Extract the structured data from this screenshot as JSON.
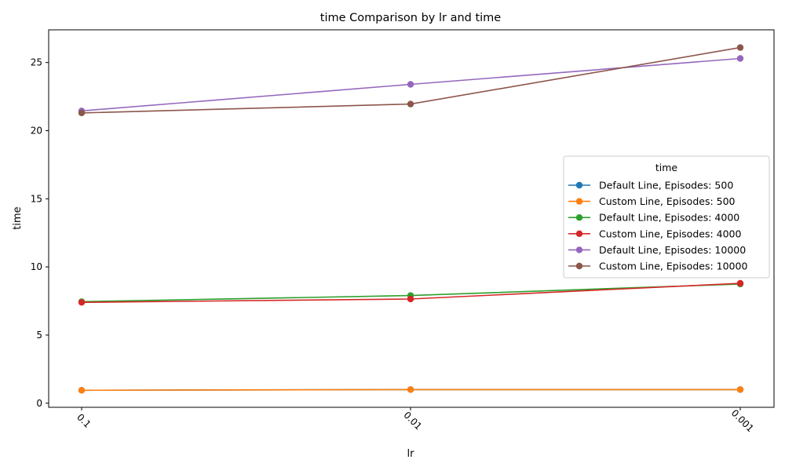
{
  "chart_data": {
    "type": "line",
    "title": "time Comparison by lr and time",
    "xlabel": "lr",
    "ylabel": "time",
    "categories": [
      "0.1",
      "0.01",
      "0.001"
    ],
    "yticks": [
      0,
      5,
      10,
      15,
      20,
      25
    ],
    "ylim": [
      -0.3,
      27.4
    ],
    "grid": false,
    "legend": {
      "title": "time",
      "placement": "center-right"
    },
    "series": [
      {
        "name": "Default Line, Episodes: 500",
        "color": "#1f77b4",
        "values": [
          0.95,
          1.0,
          1.0
        ]
      },
      {
        "name": "Custom Line, Episodes: 500",
        "color": "#ff7f0e",
        "values": [
          0.95,
          1.0,
          1.0
        ]
      },
      {
        "name": "Default Line, Episodes: 4000",
        "color": "#2ca02c",
        "values": [
          7.45,
          7.9,
          8.75
        ]
      },
      {
        "name": "Custom Line, Episodes: 4000",
        "color": "#d62728",
        "values": [
          7.4,
          7.65,
          8.8
        ]
      },
      {
        "name": "Default Line, Episodes: 10000",
        "color": "#9467bd",
        "values": [
          21.45,
          23.4,
          25.3
        ]
      },
      {
        "name": "Custom Line, Episodes: 10000",
        "color": "#8c564b",
        "values": [
          21.3,
          21.95,
          26.1
        ]
      }
    ]
  }
}
